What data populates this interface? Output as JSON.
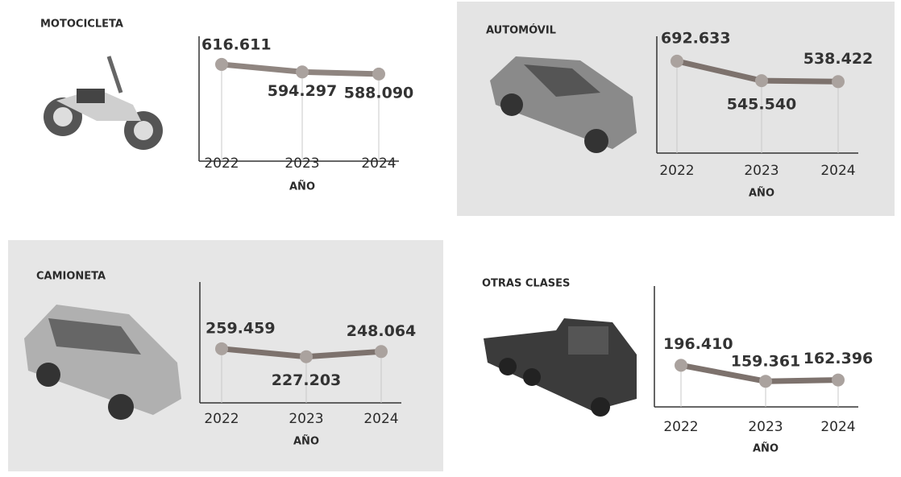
{
  "chart_data": [
    {
      "type": "line",
      "title": "MOTOCICLETA",
      "x_label": "AÑO",
      "categories": [
        "2022",
        "2023",
        "2024"
      ],
      "values": [
        616611,
        594297,
        588090
      ],
      "value_labels": [
        "616.611",
        "594.297",
        "588.090"
      ],
      "ylim": [
        330000,
        700000
      ],
      "color": "#8f8580"
    },
    {
      "type": "line",
      "title": "AUTOMÓVIL",
      "x_label": "AÑO",
      "categories": [
        "2022",
        "2023",
        "2024"
      ],
      "values": [
        692633,
        545540,
        538422
      ],
      "value_labels": [
        "692.633",
        "545.540",
        "538.422"
      ],
      "ylim": [
        0,
        880000
      ],
      "color": "#7d726d"
    },
    {
      "type": "line",
      "title": "CAMIONETA",
      "x_label": "AÑO",
      "categories": [
        "2022",
        "2023",
        "2024"
      ],
      "values": [
        259459,
        227203,
        248064
      ],
      "value_labels": [
        "259.459",
        "227.203",
        "248.064"
      ],
      "ylim": [
        40000,
        530000
      ],
      "color": "#7d726d"
    },
    {
      "type": "line",
      "title": "OTRAS CLASES",
      "x_label": "AÑO",
      "categories": [
        "2022",
        "2023",
        "2024"
      ],
      "values": [
        196410,
        159361,
        162396
      ],
      "value_labels": [
        "196.410",
        "159.361",
        "162.396"
      ],
      "ylim": [
        100000,
        380000
      ],
      "color": "#7d726d"
    }
  ]
}
